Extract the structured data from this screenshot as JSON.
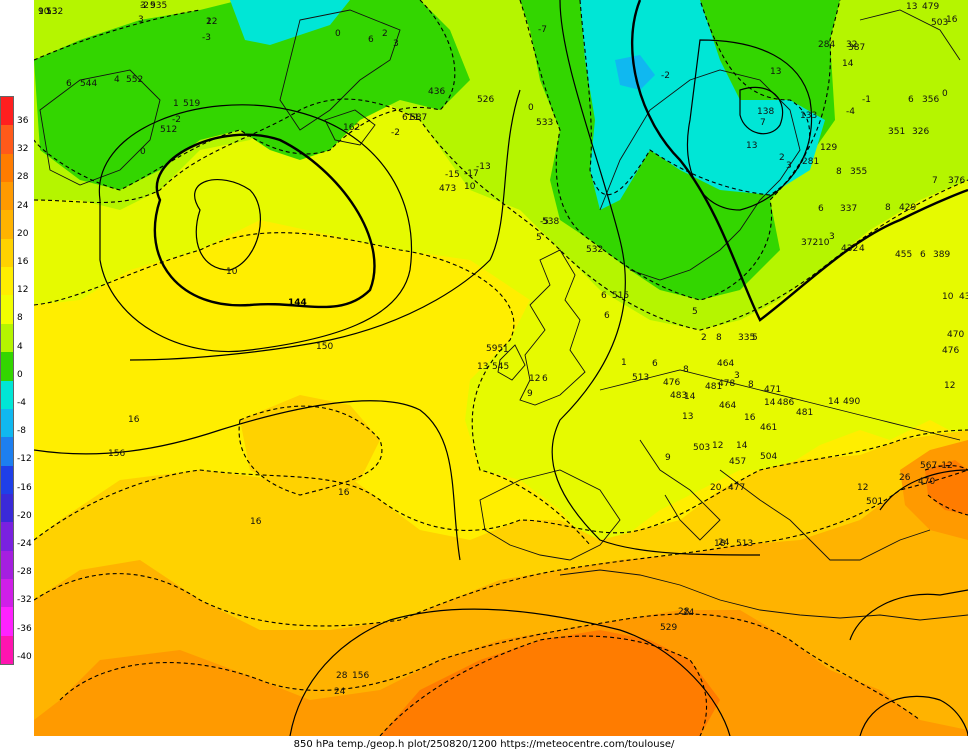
{
  "caption": "850 hPa temp./geop.h plot/250820/1200 https://meteocentre.com/toulouse/",
  "colorbar": {
    "labels": [
      "36",
      "32",
      "28",
      "24",
      "20",
      "16",
      "12",
      "8",
      "4",
      "0",
      "-4",
      "-8",
      "-12",
      "-16",
      "-20",
      "-24",
      "-28",
      "-32",
      "-36",
      "-40"
    ],
    "colors": [
      "#ff1f1f",
      "#ff5a1a",
      "#ff7c00",
      "#ff9a00",
      "#ffb300",
      "#ffd200",
      "#ffee00",
      "#f2ff00",
      "#b5f500",
      "#33d600",
      "#00e6d6",
      "#10b8f0",
      "#1d7ff0",
      "#1f3fe8",
      "#3a2ad8",
      "#7a21e0",
      "#a51fe0",
      "#d01fe8",
      "#ff22ff",
      "#ff14b0"
    ]
  },
  "geopotential_labels": [
    "144",
    "150",
    "156"
  ],
  "temperature_labels": [
    "16",
    "16",
    "16",
    "12",
    "24",
    "28"
  ],
  "station_labels": [
    "9",
    "532",
    "3",
    "535",
    "2",
    "3",
    "-3",
    "0",
    "6",
    "2",
    "3",
    "4",
    "552",
    "6",
    "544",
    "1",
    "519",
    "-2",
    "512",
    "0",
    "436",
    "162",
    "611",
    "-2",
    "587",
    "-7",
    "0",
    "533",
    "526",
    "-15",
    "473",
    "10",
    "-17",
    "-13",
    "5",
    "538",
    "-5",
    "532",
    "6",
    "515",
    "6",
    "595",
    "1",
    "13",
    "545",
    "12",
    "6",
    "9",
    "513",
    "1",
    "6",
    "8",
    "476",
    "483",
    "14",
    "481",
    "478",
    "8",
    "471",
    "14",
    "486",
    "14",
    "490",
    "13",
    "503",
    "12",
    "14",
    "457",
    "504",
    "9",
    "20",
    "477",
    "18",
    "513",
    "24",
    "529",
    "28",
    "156",
    "24",
    "567",
    "-12",
    "26",
    "470",
    "501",
    "12",
    "503",
    "-2",
    "13",
    "133",
    "-4",
    "-1",
    "284",
    "32",
    "6",
    "356",
    "0",
    "326",
    "351",
    "8",
    "355",
    "7",
    "376",
    "6",
    "337",
    "8",
    "429",
    "3",
    "372",
    "10",
    "432",
    "4",
    "455",
    "6",
    "389",
    "10",
    "438",
    "470",
    "476",
    "13",
    "479",
    "16",
    "10",
    "14",
    "387",
    "13",
    "138",
    "7",
    "3",
    "2",
    "281",
    "129",
    "5",
    "2",
    "8",
    "335",
    "5",
    "464",
    "3",
    "464",
    "16",
    "461",
    "481",
    "10",
    "13",
    "-2",
    "9",
    "12"
  ]
}
